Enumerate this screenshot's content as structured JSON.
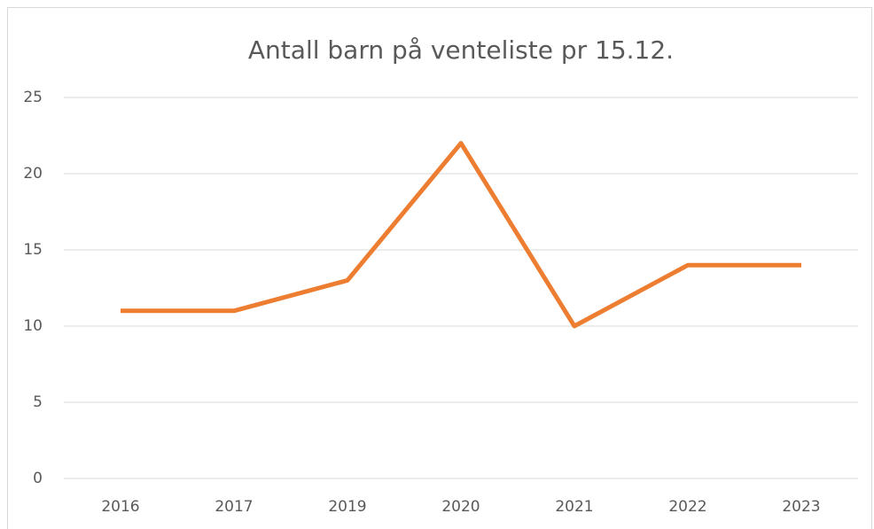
{
  "chart_data": {
    "type": "line",
    "title": "Antall barn på venteliste pr 15.12.",
    "categories": [
      "2016",
      "2017",
      "2019",
      "2020",
      "2021",
      "2022",
      "2023"
    ],
    "values": [
      11,
      11,
      13,
      22,
      10,
      14,
      14
    ],
    "color": "#ed7d31",
    "ylim": [
      0,
      25
    ],
    "yticks": [
      0,
      5,
      10,
      15,
      20,
      25
    ],
    "grid": true
  }
}
